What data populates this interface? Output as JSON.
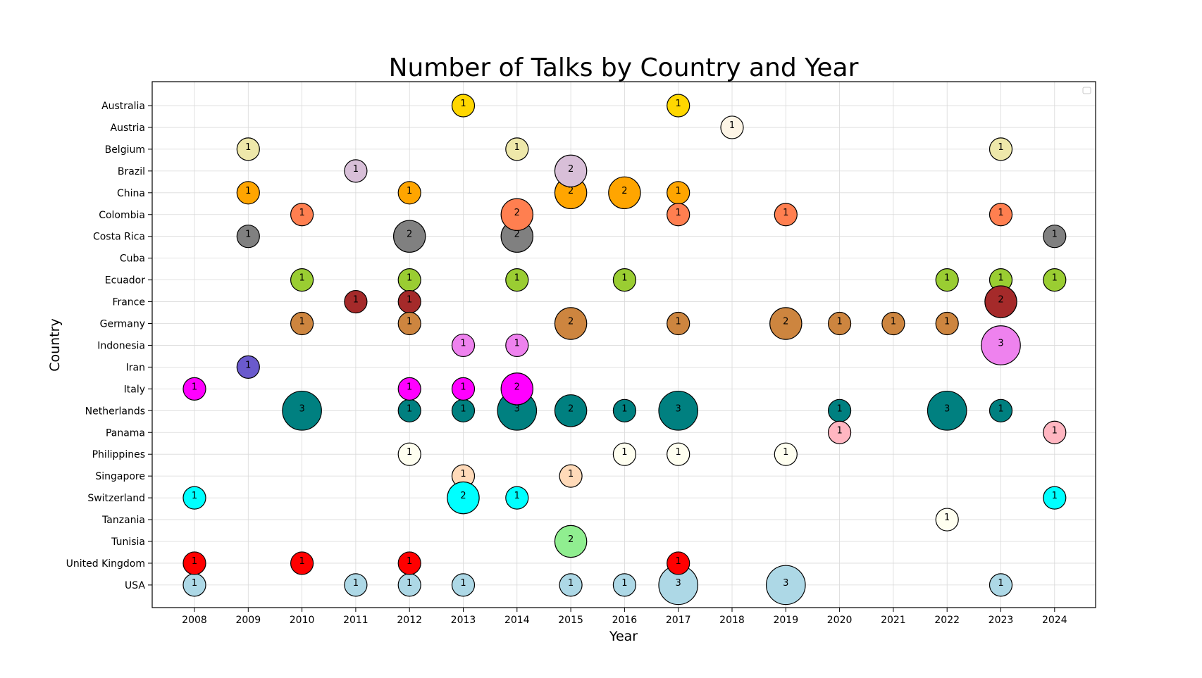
{
  "chart_data": {
    "type": "scatter",
    "title": "Number of Talks by Country and Year",
    "xlabel": "Year",
    "ylabel": "Country",
    "grid": true,
    "legend": "top-right (empty)",
    "size_encoding": "bubble area proportional to number of talks",
    "x": [
      "2008",
      "2009",
      "2010",
      "2011",
      "2012",
      "2013",
      "2014",
      "2015",
      "2016",
      "2017",
      "2018",
      "2019",
      "2020",
      "2021",
      "2022",
      "2023",
      "2024"
    ],
    "countries": [
      "Australia",
      "Austria",
      "Belgium",
      "Brazil",
      "China",
      "Colombia",
      "Costa Rica",
      "Cuba",
      "Ecuador",
      "France",
      "Germany",
      "Indonesia",
      "Iran",
      "Italy",
      "Netherlands",
      "Panama",
      "Philippines",
      "Singapore",
      "Switzerland",
      "Tanzania",
      "Tunisia",
      "United Kingdom",
      "USA"
    ],
    "colors": {
      "Australia": "#ffd700",
      "Austria": "#fdf5e6",
      "Belgium": "#eee8aa",
      "Brazil": "#d8bfd8",
      "China": "#ffa500",
      "Colombia": "#ff7f50",
      "Costa Rica": "#808080",
      "Cuba": "#d3d3d3",
      "Ecuador": "#9acd32",
      "France": "#a52a2a",
      "Germany": "#cd853f",
      "Indonesia": "#ee82ee",
      "Iran": "#6a5acd",
      "Italy": "#ff00ff",
      "Netherlands": "#008080",
      "Panama": "#ffb6c1",
      "Philippines": "#fffff0",
      "Singapore": "#ffdab9",
      "Switzerland": "#00ffff",
      "Tanzania": "#fffff0",
      "Tunisia": "#90ee90",
      "United Kingdom": "#ff0000",
      "USA": "#add8e6"
    },
    "points": [
      {
        "country": "Australia",
        "year": "2013",
        "count": 1
      },
      {
        "country": "Australia",
        "year": "2017",
        "count": 1
      },
      {
        "country": "Austria",
        "year": "2018",
        "count": 1
      },
      {
        "country": "Belgium",
        "year": "2009",
        "count": 1
      },
      {
        "country": "Belgium",
        "year": "2014",
        "count": 1
      },
      {
        "country": "Belgium",
        "year": "2023",
        "count": 1
      },
      {
        "country": "China",
        "year": "2009",
        "count": 1
      },
      {
        "country": "China",
        "year": "2012",
        "count": 1
      },
      {
        "country": "China",
        "year": "2015",
        "count": 2
      },
      {
        "country": "China",
        "year": "2016",
        "count": 2
      },
      {
        "country": "China",
        "year": "2017",
        "count": 1
      },
      {
        "country": "Brazil",
        "year": "2011",
        "count": 1
      },
      {
        "country": "Brazil",
        "year": "2015",
        "count": 2
      },
      {
        "country": "Colombia",
        "year": "2010",
        "count": 1
      },
      {
        "country": "Colombia",
        "year": "2017",
        "count": 1
      },
      {
        "country": "Colombia",
        "year": "2019",
        "count": 1
      },
      {
        "country": "Colombia",
        "year": "2023",
        "count": 1
      },
      {
        "country": "Costa Rica",
        "year": "2009",
        "count": 1
      },
      {
        "country": "Costa Rica",
        "year": "2012",
        "count": 2
      },
      {
        "country": "Costa Rica",
        "year": "2014",
        "count": 2
      },
      {
        "country": "Costa Rica",
        "year": "2024",
        "count": 1
      },
      {
        "country": "Colombia",
        "year": "2014",
        "count": 2
      },
      {
        "country": "Ecuador",
        "year": "2010",
        "count": 1
      },
      {
        "country": "Ecuador",
        "year": "2012",
        "count": 1
      },
      {
        "country": "Ecuador",
        "year": "2014",
        "count": 1
      },
      {
        "country": "Ecuador",
        "year": "2016",
        "count": 1
      },
      {
        "country": "Ecuador",
        "year": "2022",
        "count": 1
      },
      {
        "country": "Ecuador",
        "year": "2023",
        "count": 1
      },
      {
        "country": "Ecuador",
        "year": "2024",
        "count": 1
      },
      {
        "country": "France",
        "year": "2011",
        "count": 1
      },
      {
        "country": "France",
        "year": "2012",
        "count": 1
      },
      {
        "country": "France",
        "year": "2023",
        "count": 2
      },
      {
        "country": "Germany",
        "year": "2010",
        "count": 1
      },
      {
        "country": "Germany",
        "year": "2012",
        "count": 1
      },
      {
        "country": "Germany",
        "year": "2015",
        "count": 2
      },
      {
        "country": "Germany",
        "year": "2017",
        "count": 1
      },
      {
        "country": "Germany",
        "year": "2019",
        "count": 2
      },
      {
        "country": "Germany",
        "year": "2020",
        "count": 1
      },
      {
        "country": "Germany",
        "year": "2021",
        "count": 1
      },
      {
        "country": "Germany",
        "year": "2022",
        "count": 1
      },
      {
        "country": "Indonesia",
        "year": "2013",
        "count": 1
      },
      {
        "country": "Indonesia",
        "year": "2014",
        "count": 1
      },
      {
        "country": "Indonesia",
        "year": "2023",
        "count": 3
      },
      {
        "country": "Iran",
        "year": "2009",
        "count": 1
      },
      {
        "country": "Netherlands",
        "year": "2010",
        "count": 3
      },
      {
        "country": "Netherlands",
        "year": "2012",
        "count": 1
      },
      {
        "country": "Netherlands",
        "year": "2013",
        "count": 1
      },
      {
        "country": "Netherlands",
        "year": "2014",
        "count": 3
      },
      {
        "country": "Netherlands",
        "year": "2015",
        "count": 2
      },
      {
        "country": "Netherlands",
        "year": "2016",
        "count": 1
      },
      {
        "country": "Netherlands",
        "year": "2017",
        "count": 3
      },
      {
        "country": "Netherlands",
        "year": "2020",
        "count": 1
      },
      {
        "country": "Netherlands",
        "year": "2022",
        "count": 3
      },
      {
        "country": "Netherlands",
        "year": "2023",
        "count": 1
      },
      {
        "country": "Italy",
        "year": "2008",
        "count": 1
      },
      {
        "country": "Italy",
        "year": "2012",
        "count": 1
      },
      {
        "country": "Italy",
        "year": "2013",
        "count": 1
      },
      {
        "country": "Italy",
        "year": "2014",
        "count": 2
      },
      {
        "country": "Panama",
        "year": "2020",
        "count": 1
      },
      {
        "country": "Panama",
        "year": "2024",
        "count": 1
      },
      {
        "country": "Philippines",
        "year": "2012",
        "count": 1
      },
      {
        "country": "Philippines",
        "year": "2016",
        "count": 1
      },
      {
        "country": "Philippines",
        "year": "2017",
        "count": 1
      },
      {
        "country": "Philippines",
        "year": "2019",
        "count": 1
      },
      {
        "country": "Singapore",
        "year": "2013",
        "count": 1
      },
      {
        "country": "Singapore",
        "year": "2015",
        "count": 1
      },
      {
        "country": "Switzerland",
        "year": "2008",
        "count": 1
      },
      {
        "country": "Switzerland",
        "year": "2013",
        "count": 2
      },
      {
        "country": "Switzerland",
        "year": "2014",
        "count": 1
      },
      {
        "country": "Switzerland",
        "year": "2024",
        "count": 1
      },
      {
        "country": "Tanzania",
        "year": "2022",
        "count": 1
      },
      {
        "country": "Tunisia",
        "year": "2015",
        "count": 2
      },
      {
        "country": "USA",
        "year": "2008",
        "count": 1
      },
      {
        "country": "USA",
        "year": "2011",
        "count": 1
      },
      {
        "country": "USA",
        "year": "2012",
        "count": 1
      },
      {
        "country": "USA",
        "year": "2013",
        "count": 1
      },
      {
        "country": "USA",
        "year": "2015",
        "count": 1
      },
      {
        "country": "USA",
        "year": "2016",
        "count": 1
      },
      {
        "country": "USA",
        "year": "2017",
        "count": 3
      },
      {
        "country": "USA",
        "year": "2019",
        "count": 3
      },
      {
        "country": "USA",
        "year": "2023",
        "count": 1
      },
      {
        "country": "United Kingdom",
        "year": "2008",
        "count": 1
      },
      {
        "country": "United Kingdom",
        "year": "2010",
        "count": 1
      },
      {
        "country": "United Kingdom",
        "year": "2012",
        "count": 1
      },
      {
        "country": "United Kingdom",
        "year": "2017",
        "count": 1
      }
    ]
  }
}
